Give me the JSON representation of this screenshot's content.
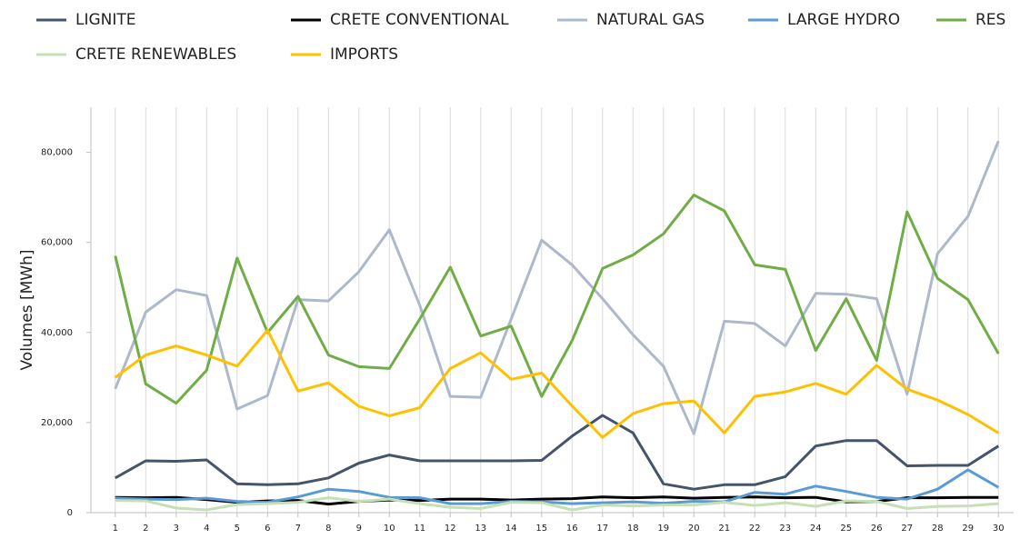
{
  "chart_data": {
    "type": "line",
    "y_label": "Volumes [MWh]",
    "x": [
      1,
      2,
      3,
      4,
      5,
      6,
      7,
      8,
      9,
      10,
      11,
      12,
      13,
      14,
      15,
      16,
      17,
      18,
      19,
      20,
      21,
      22,
      23,
      24,
      25,
      26,
      27,
      28,
      29,
      30
    ],
    "xlim": [
      0.2,
      30.5
    ],
    "xticks": [
      1,
      2,
      3,
      4,
      5,
      6,
      7,
      8,
      9,
      10,
      11,
      12,
      13,
      14,
      15,
      16,
      17,
      18,
      19,
      20,
      21,
      22,
      23,
      24,
      25,
      26,
      27,
      28,
      29,
      30
    ],
    "ylim": [
      0,
      90000
    ],
    "yticks": [
      0,
      {
        "value": 20000,
        "label": "20,000"
      },
      {
        "value": 40000,
        "label": "40,000"
      },
      {
        "value": 60000,
        "label": "60,000"
      },
      {
        "value": 80000,
        "label": "80,000"
      }
    ],
    "grid": "x",
    "legend": "top",
    "series": [
      {
        "name": "LIGNITE",
        "color": "#44546a",
        "values": [
          7700,
          11500,
          11400,
          11700,
          6400,
          6200,
          6400,
          7700,
          11000,
          12800,
          11500,
          11500,
          11500,
          11500,
          11600,
          17000,
          21600,
          17700,
          6400,
          5200,
          6200,
          6200,
          8000,
          14800,
          16000,
          16000,
          10400,
          10500,
          10500,
          14800
        ]
      },
      {
        "name": "CRETE CONVENTIONAL",
        "color": "#000000",
        "values": [
          3400,
          3300,
          3400,
          2900,
          2300,
          2600,
          2700,
          1900,
          2500,
          2800,
          2700,
          3000,
          3000,
          2800,
          3000,
          3100,
          3500,
          3300,
          3500,
          3200,
          3400,
          3500,
          3300,
          3400,
          2400,
          2500,
          3300,
          3300,
          3400,
          3400
        ]
      },
      {
        "name": "NATURAL GAS",
        "color": "#adb9ca",
        "values": [
          27500,
          44500,
          49500,
          48200,
          23000,
          26000,
          47300,
          47000,
          53500,
          62800,
          46000,
          25800,
          25600,
          43000,
          60500,
          55000,
          47500,
          39500,
          32500,
          17500,
          42500,
          42000,
          37000,
          48700,
          48500,
          47500,
          26300,
          57500,
          65800,
          82500
        ]
      },
      {
        "name": "LARGE HYDRO",
        "color": "#5b9bd5",
        "values": [
          3200,
          3000,
          2900,
          3200,
          2500,
          2300,
          3500,
          5200,
          4700,
          3400,
          3300,
          2000,
          2000,
          2500,
          2400,
          2000,
          2200,
          2400,
          2100,
          2500,
          2400,
          4500,
          4100,
          5900,
          4700,
          3400,
          3000,
          5200,
          9500,
          5600
        ]
      },
      {
        "name": "RES",
        "color": "#70ad47",
        "values": [
          57000,
          28600,
          24300,
          31600,
          56500,
          40000,
          48000,
          35000,
          32400,
          32000,
          43000,
          54500,
          39200,
          41400,
          25800,
          38200,
          54200,
          57200,
          61900,
          70500,
          67000,
          55000,
          54000,
          36000,
          47500,
          33800,
          66800,
          52000,
          47300,
          35300
        ]
      },
      {
        "name": "CRETE RENEWABLES",
        "color": "#c5e0b4",
        "values": [
          2700,
          2600,
          1000,
          600,
          1800,
          2000,
          2300,
          3300,
          2500,
          3000,
          2000,
          1200,
          900,
          2300,
          2200,
          600,
          1700,
          1500,
          1700,
          1700,
          2300,
          1600,
          2200,
          1400,
          2600,
          2500,
          900,
          1400,
          1500,
          2000
        ]
      },
      {
        "name": "IMPORTS",
        "color": "#ffc000",
        "values": [
          30000,
          35000,
          37000,
          35000,
          32500,
          40500,
          27000,
          28800,
          23600,
          21500,
          23300,
          32000,
          35500,
          29600,
          31000,
          23700,
          16700,
          22000,
          24200,
          24800,
          17700,
          25800,
          26800,
          28700,
          26300,
          32700,
          27400,
          25000,
          21800,
          17700
        ]
      }
    ]
  }
}
